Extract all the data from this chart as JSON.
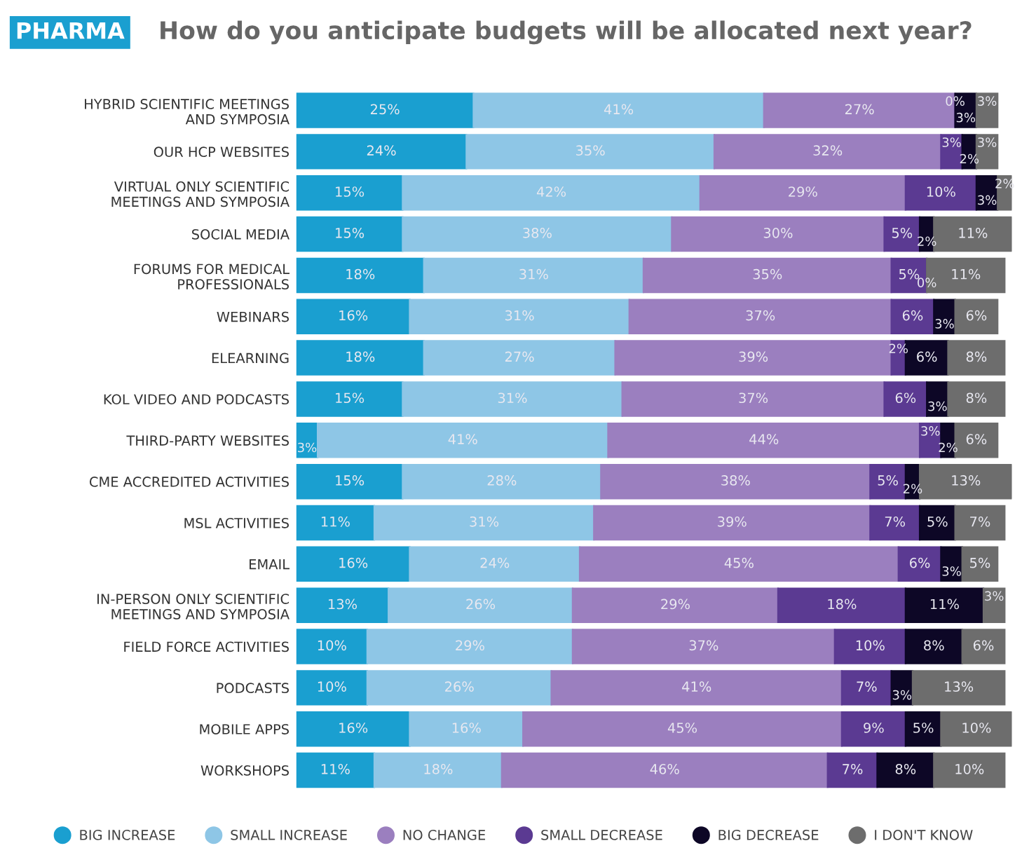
{
  "chart_data": {
    "type": "bar",
    "orientation": "horizontal",
    "stacked": true,
    "title": "How do you anticipate budgets will be allocated next year?",
    "annotations": [
      "PHARMA"
    ],
    "categories": [
      "HYBRID SCIENTIFIC MEETINGS\nAND SYMPOSIA",
      "OUR HCP WEBSITES",
      "VIRTUAL ONLY SCIENTIFIC\nMEETINGS AND SYMPOSIA",
      "SOCIAL MEDIA",
      "FORUMS FOR MEDICAL\nPROFESSIONALS",
      "WEBINARS",
      "ELEARNING",
      "KOL VIDEO AND PODCASTS",
      "THIRD-PARTY WEBSITES",
      "CME ACCREDITED ACTIVITIES",
      "MSL ACTIVITIES",
      "EMAIL",
      "IN-PERSON ONLY SCIENTIFIC\nMEETINGS AND SYMPOSIA",
      "FIELD FORCE ACTIVITIES",
      "PODCASTS",
      "MOBILE APPS",
      "WORKSHOPS"
    ],
    "xlim": [
      0,
      101
    ],
    "tick_labels": "y",
    "legend": "bottom",
    "grid": false,
    "marker": "circle",
    "series": [
      {
        "name": "BIG INCREASE",
        "color": "#1a9fd0",
        "values": [
          25,
          24,
          15,
          15,
          18,
          16,
          18,
          15,
          3,
          15,
          11,
          16,
          13,
          10,
          10,
          16,
          11
        ],
        "value_labels": [
          "25%",
          "24%",
          "15%",
          "15%",
          "18%",
          "16%",
          "18%",
          "15%",
          "3%",
          "15%",
          "11%",
          "16%",
          "13%",
          "10%",
          "10%",
          "16%",
          "11%"
        ]
      },
      {
        "name": "SMALL INCREASE",
        "color": "#8ec6e6",
        "values": [
          41,
          35,
          42,
          38,
          31,
          31,
          27,
          31,
          41,
          28,
          31,
          24,
          26,
          29,
          26,
          16,
          18
        ],
        "value_labels": [
          "41%",
          "35%",
          "42%",
          "38%",
          "31%",
          "31%",
          "27%",
          "31%",
          "41%",
          "28%",
          "31%",
          "24%",
          "26%",
          "29%",
          "26%",
          "16%",
          "18%"
        ]
      },
      {
        "name": "NO CHANGE",
        "color": "#9b7fbf",
        "values": [
          27,
          32,
          29,
          30,
          35,
          37,
          39,
          37,
          44,
          38,
          39,
          45,
          29,
          37,
          41,
          45,
          46
        ],
        "value_labels": [
          "27%",
          "32%",
          "29%",
          "30%",
          "35%",
          "37%",
          "39%",
          "37%",
          "44%",
          "38%",
          "39%",
          "45%",
          "29%",
          "37%",
          "41%",
          "45%",
          "46%"
        ]
      },
      {
        "name": "SMALL DECREASE",
        "color": "#5b3a92",
        "values": [
          0,
          3,
          10,
          5,
          5,
          6,
          2,
          6,
          3,
          5,
          7,
          6,
          18,
          10,
          7,
          9,
          7
        ],
        "value_labels": [
          "0%",
          "3%",
          "10%",
          "5%",
          "5%",
          "6%",
          "2%",
          "6%",
          "3%",
          "5%",
          "7%",
          "6%",
          "18%",
          "10%",
          "7%",
          "9%",
          "7%"
        ]
      },
      {
        "name": "BIG DECREASE",
        "color": "#0d0726",
        "values": [
          3,
          2,
          3,
          2,
          0,
          3,
          6,
          3,
          2,
          2,
          5,
          3,
          11,
          8,
          3,
          5,
          8
        ],
        "value_labels": [
          "3%",
          "2%",
          "3%",
          "2%",
          "0%",
          "3%",
          "6%",
          "3%",
          "2%",
          "2%",
          "5%",
          "3%",
          "11%",
          "8%",
          "3%",
          "5%",
          "8%"
        ]
      },
      {
        "name": "I DON'T KNOW",
        "color": "#6d6d6d",
        "values": [
          3,
          3,
          2,
          11,
          11,
          6,
          8,
          8,
          6,
          13,
          7,
          5,
          3,
          6,
          13,
          10,
          10
        ],
        "value_labels": [
          "3%",
          "3%",
          "2%",
          "11%",
          "11%",
          "6%",
          "8%",
          "8%",
          "6%",
          "13%",
          "7%",
          "5%",
          "3%",
          "6%",
          "13%",
          "10%",
          "10%"
        ]
      }
    ]
  }
}
